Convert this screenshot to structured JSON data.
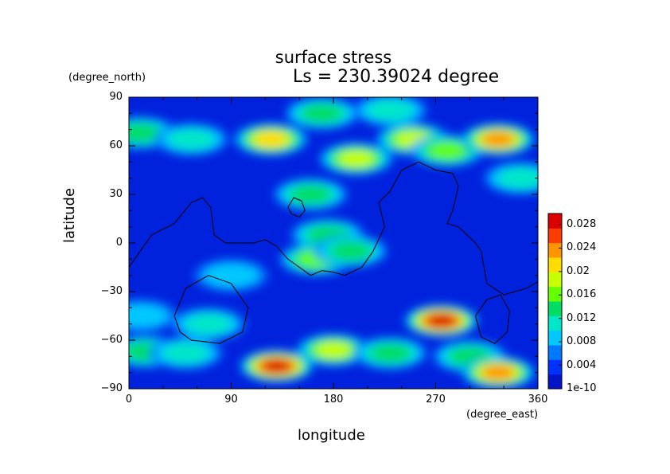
{
  "chart_data": {
    "type": "heatmap",
    "title": "surface stress",
    "subtitle": "Ls = 230.39024 degree",
    "xlabel": "longitude",
    "ylabel": "latitude",
    "x_units": "(degree_east)",
    "y_units": "(degree_north)",
    "xlim": [
      0,
      360
    ],
    "ylim": [
      -90,
      90
    ],
    "x_ticks": [
      "0",
      "90",
      "180",
      "270",
      "360"
    ],
    "y_ticks": [
      "90",
      "60",
      "30",
      "0",
      "−30",
      "−60",
      "−90"
    ],
    "colorbar": {
      "ticks": [
        "0.028",
        "0.024",
        "0.02",
        "0.016",
        "0.012",
        "0.008",
        "0.004",
        "1e-10"
      ],
      "range": [
        0,
        0.03
      ],
      "colormap": [
        "#0014c8",
        "#0032ff",
        "#0078ff",
        "#00c8ff",
        "#00e6c8",
        "#00dc64",
        "#64ff00",
        "#c8ff00",
        "#ffdc00",
        "#ff9600",
        "#ff3c00",
        "#dc0000"
      ]
    },
    "background_color": "#0022dd",
    "hotspots": [
      {
        "lon": 10,
        "lat": 68,
        "value": 0.012
      },
      {
        "lon": 55,
        "lat": 64,
        "value": 0.008
      },
      {
        "lon": 125,
        "lat": 64,
        "value": 0.018
      },
      {
        "lon": 200,
        "lat": 52,
        "value": 0.016
      },
      {
        "lon": 250,
        "lat": 64,
        "value": 0.016
      },
      {
        "lon": 280,
        "lat": 57,
        "value": 0.014
      },
      {
        "lon": 325,
        "lat": 64,
        "value": 0.022
      },
      {
        "lon": 170,
        "lat": 80,
        "value": 0.01
      },
      {
        "lon": 230,
        "lat": 82,
        "value": 0.008
      },
      {
        "lon": 160,
        "lat": 30,
        "value": 0.01
      },
      {
        "lon": 175,
        "lat": 5,
        "value": 0.012
      },
      {
        "lon": 165,
        "lat": -10,
        "value": 0.014
      },
      {
        "lon": 195,
        "lat": -5,
        "value": 0.01
      },
      {
        "lon": 10,
        "lat": -45,
        "value": 0.006
      },
      {
        "lon": 70,
        "lat": -50,
        "value": 0.008
      },
      {
        "lon": 275,
        "lat": -48,
        "value": 0.026
      },
      {
        "lon": 15,
        "lat": -67,
        "value": 0.01
      },
      {
        "lon": 50,
        "lat": -68,
        "value": 0.009
      },
      {
        "lon": 130,
        "lat": -76,
        "value": 0.028
      },
      {
        "lon": 180,
        "lat": -66,
        "value": 0.016
      },
      {
        "lon": 230,
        "lat": -68,
        "value": 0.012
      },
      {
        "lon": 300,
        "lat": -70,
        "value": 0.01
      },
      {
        "lon": 325,
        "lat": -80,
        "value": 0.022
      },
      {
        "lon": 345,
        "lat": 40,
        "value": 0.009
      },
      {
        "lon": 90,
        "lat": -20,
        "value": 0.005
      }
    ],
    "contours": [
      {
        "name": "africa-europe",
        "points": [
          [
            0,
            -15
          ],
          [
            10,
            -5
          ],
          [
            20,
            5
          ],
          [
            40,
            12
          ],
          [
            55,
            25
          ],
          [
            65,
            28
          ],
          [
            72,
            22
          ],
          [
            75,
            5
          ],
          [
            85,
            0
          ],
          [
            110,
            0
          ],
          [
            120,
            2
          ],
          [
            130,
            -2
          ],
          [
            140,
            -10
          ],
          [
            150,
            -15
          ],
          [
            160,
            -20
          ],
          [
            170,
            -17
          ],
          [
            180,
            -18
          ],
          [
            190,
            -20
          ],
          [
            205,
            -15
          ],
          [
            215,
            -5
          ],
          [
            225,
            10
          ],
          [
            220,
            25
          ],
          [
            230,
            32
          ],
          [
            240,
            45
          ],
          [
            255,
            50
          ],
          [
            270,
            45
          ],
          [
            285,
            43
          ],
          [
            290,
            35
          ],
          [
            285,
            20
          ],
          [
            280,
            12
          ],
          [
            290,
            10
          ],
          [
            305,
            0
          ],
          [
            310,
            -5
          ],
          [
            315,
            -25
          ],
          [
            330,
            -32
          ],
          [
            350,
            -28
          ],
          [
            360,
            -24
          ]
        ]
      },
      {
        "name": "small-island",
        "points": [
          [
            140,
            22
          ],
          [
            145,
            28
          ],
          [
            152,
            26
          ],
          [
            155,
            20
          ],
          [
            150,
            16
          ],
          [
            143,
            18
          ],
          [
            140,
            22
          ]
        ]
      },
      {
        "name": "south-basin-west",
        "points": [
          [
            40,
            -45
          ],
          [
            50,
            -28
          ],
          [
            70,
            -20
          ],
          [
            90,
            -25
          ],
          [
            105,
            -40
          ],
          [
            100,
            -55
          ],
          [
            80,
            -62
          ],
          [
            55,
            -60
          ],
          [
            45,
            -55
          ],
          [
            40,
            -45
          ]
        ]
      },
      {
        "name": "south-basin-east",
        "points": [
          [
            305,
            -45
          ],
          [
            315,
            -35
          ],
          [
            327,
            -32
          ],
          [
            335,
            -42
          ],
          [
            333,
            -55
          ],
          [
            322,
            -62
          ],
          [
            310,
            -58
          ],
          [
            305,
            -45
          ]
        ]
      }
    ]
  }
}
